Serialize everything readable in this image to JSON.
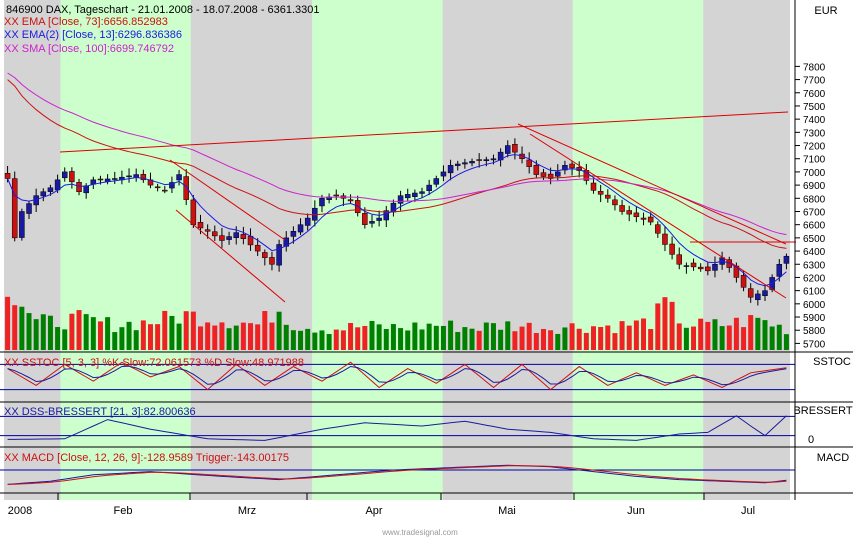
{
  "header": {
    "symbol_line": "846900  DAX, Tageschart - 21.01.2008 - 18.07.2008 - 6361.3301",
    "currency": "EUR",
    "watermark": "www.tradesignal.com"
  },
  "legends": {
    "ema73": "XX EMA [Close, 73]:6656.852983",
    "ema13": "XX EMA(2) [Close, 13]:6296.836386",
    "sma100": "XX SMA [Close, 100]:6699.746792",
    "sstoc": "XX SSTOC [5, 3, 3] %K Slow:72.061573 %D Slow:48.971988",
    "dss": "XX DSS-BRESSERT [21, 3]:82.800636",
    "macd": "XX MACD [Close, 12, 26, 9]:-128.9589  Trigger:-143.00175"
  },
  "panel_labels": {
    "sstoc": "SSTOC",
    "dss": "BRESSERT",
    "dss_zero": "0",
    "macd": "MACD"
  },
  "colors": {
    "up": "#1a1aa0",
    "down": "#cc1111",
    "ema73": "#cc1111",
    "ema13": "#1a1ae0",
    "sma100": "#cc22cc",
    "vol_up": "#008000",
    "vol_down": "#ee2222",
    "band_green": "#ccffcc",
    "band_gray": "#d4d4d4",
    "hline": "#0000a0",
    "trend": "#dd0000"
  },
  "chart_data": {
    "type": "candlestick",
    "title": "846900 DAX, Tageschart - 21.01.2008 - 18.07.2008 - 6361.3301",
    "yaxis": {
      "ticks": [
        5700,
        5800,
        5900,
        6000,
        6100,
        6200,
        6300,
        6400,
        6500,
        6600,
        6700,
        6800,
        6900,
        7000,
        7100,
        7200,
        7300,
        7400,
        7500,
        7600,
        7700,
        7800
      ],
      "range": [
        5650,
        8000
      ]
    },
    "xaxis": {
      "labels": [
        "2008",
        "Feb",
        "Mrz",
        "Apr",
        "Mai",
        "Jun",
        "Jul"
      ]
    },
    "price_anchors": [
      [
        0,
        6950
      ],
      [
        1,
        6500
      ],
      [
        2,
        6700
      ],
      [
        4,
        6820
      ],
      [
        6,
        6880
      ],
      [
        8,
        7000
      ],
      [
        10,
        6850
      ],
      [
        12,
        6940
      ],
      [
        15,
        6950
      ],
      [
        18,
        6980
      ],
      [
        20,
        6900
      ],
      [
        22,
        6860
      ],
      [
        24,
        6980
      ],
      [
        26,
        6600
      ],
      [
        28,
        6550
      ],
      [
        30,
        6480
      ],
      [
        32,
        6540
      ],
      [
        35,
        6400
      ],
      [
        37,
        6300
      ],
      [
        38,
        6450
      ],
      [
        40,
        6550
      ],
      [
        42,
        6650
      ],
      [
        44,
        6800
      ],
      [
        46,
        6820
      ],
      [
        48,
        6780
      ],
      [
        50,
        6600
      ],
      [
        52,
        6650
      ],
      [
        55,
        6820
      ],
      [
        58,
        6850
      ],
      [
        60,
        6950
      ],
      [
        62,
        7050
      ],
      [
        65,
        7080
      ],
      [
        68,
        7100
      ],
      [
        70,
        7200
      ],
      [
        72,
        7100
      ],
      [
        74,
        6980
      ],
      [
        76,
        6950
      ],
      [
        78,
        7050
      ],
      [
        80,
        7010
      ],
      [
        82,
        6860
      ],
      [
        84,
        6800
      ],
      [
        86,
        6700
      ],
      [
        88,
        6660
      ],
      [
        90,
        6620
      ],
      [
        92,
        6450
      ],
      [
        94,
        6300
      ],
      [
        96,
        6280
      ],
      [
        98,
        6250
      ],
      [
        100,
        6350
      ],
      [
        102,
        6200
      ],
      [
        104,
        6050
      ],
      [
        106,
        6100
      ],
      [
        108,
        6300
      ],
      [
        109,
        6361
      ]
    ],
    "volume_anchors": [
      [
        0,
        5
      ],
      [
        2,
        3.5
      ],
      [
        4,
        2
      ],
      [
        6,
        2
      ],
      [
        10,
        2.2
      ],
      [
        15,
        1.8
      ],
      [
        20,
        2
      ],
      [
        25,
        2.5
      ],
      [
        30,
        2.2
      ],
      [
        35,
        1.8
      ],
      [
        38,
        3
      ],
      [
        40,
        1.8
      ],
      [
        45,
        1.5
      ],
      [
        50,
        1.7
      ],
      [
        55,
        1.6
      ],
      [
        60,
        1.8
      ],
      [
        65,
        1.6
      ],
      [
        70,
        1.8
      ],
      [
        75,
        1.6
      ],
      [
        80,
        1.7
      ],
      [
        85,
        1.7
      ],
      [
        90,
        2
      ],
      [
        92,
        3.2
      ],
      [
        95,
        1.8
      ],
      [
        100,
        1.8
      ],
      [
        105,
        2.2
      ],
      [
        109,
        1.5
      ]
    ],
    "sstoc_anchors": [
      [
        0,
        70
      ],
      [
        4,
        30
      ],
      [
        8,
        80
      ],
      [
        12,
        40
      ],
      [
        16,
        85
      ],
      [
        20,
        50
      ],
      [
        24,
        75
      ],
      [
        28,
        20
      ],
      [
        32,
        80
      ],
      [
        36,
        30
      ],
      [
        40,
        75
      ],
      [
        44,
        40
      ],
      [
        48,
        85
      ],
      [
        52,
        25
      ],
      [
        56,
        70
      ],
      [
        60,
        35
      ],
      [
        64,
        80
      ],
      [
        68,
        25
      ],
      [
        72,
        80
      ],
      [
        76,
        20
      ],
      [
        80,
        75
      ],
      [
        84,
        30
      ],
      [
        88,
        60
      ],
      [
        92,
        30
      ],
      [
        96,
        55
      ],
      [
        100,
        25
      ],
      [
        104,
        60
      ],
      [
        109,
        72
      ]
    ],
    "dss_anchors": [
      [
        0,
        8
      ],
      [
        8,
        10
      ],
      [
        14,
        70
      ],
      [
        20,
        40
      ],
      [
        28,
        10
      ],
      [
        36,
        5
      ],
      [
        44,
        40
      ],
      [
        50,
        60
      ],
      [
        58,
        50
      ],
      [
        64,
        65
      ],
      [
        70,
        40
      ],
      [
        76,
        30
      ],
      [
        82,
        10
      ],
      [
        88,
        5
      ],
      [
        94,
        25
      ],
      [
        98,
        30
      ],
      [
        102,
        82
      ],
      [
        104,
        50
      ],
      [
        106,
        20
      ],
      [
        109,
        82
      ]
    ],
    "macd_anchors": [
      [
        0,
        -180
      ],
      [
        6,
        -140
      ],
      [
        12,
        -60
      ],
      [
        20,
        -20
      ],
      [
        30,
        -80
      ],
      [
        38,
        -120
      ],
      [
        46,
        -60
      ],
      [
        54,
        0
      ],
      [
        62,
        30
      ],
      [
        70,
        60
      ],
      [
        76,
        40
      ],
      [
        82,
        -20
      ],
      [
        88,
        -80
      ],
      [
        94,
        -120
      ],
      [
        100,
        -140
      ],
      [
        106,
        -160
      ],
      [
        109,
        -129
      ]
    ]
  }
}
